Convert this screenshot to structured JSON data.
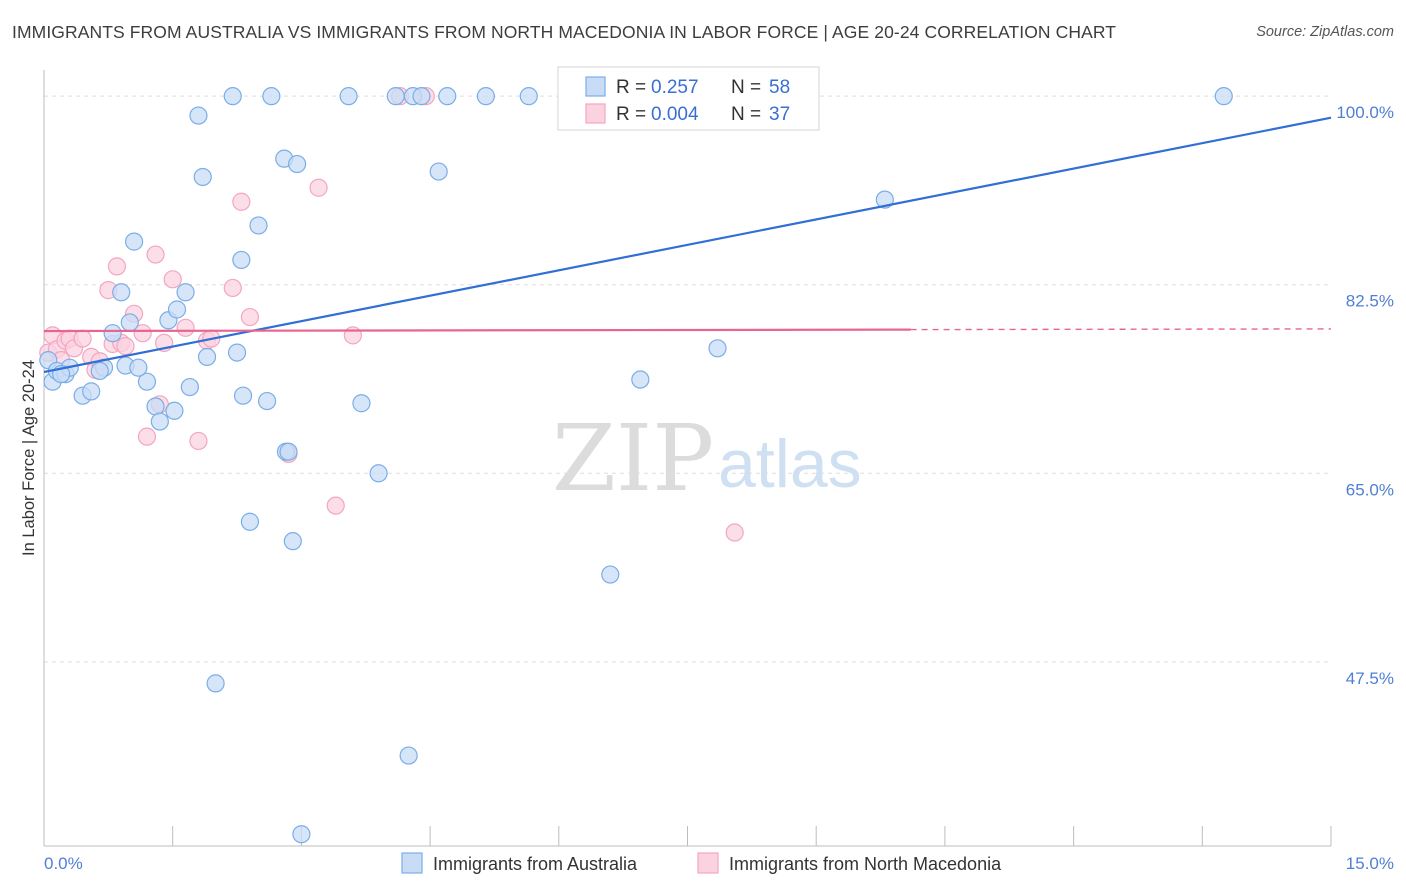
{
  "header": {
    "title": "IMMIGRANTS FROM AUSTRALIA VS IMMIGRANTS FROM NORTH MACEDONIA IN LABOR FORCE | AGE 20-24 CORRELATION CHART",
    "source": "Source: ZipAtlas.com"
  },
  "watermark": {
    "zip": "ZIP",
    "atlas": "atlas"
  },
  "legend": {
    "items": [
      {
        "r_label": "R =",
        "r_value": "0.257",
        "n_label": "N =",
        "n_value": "58"
      },
      {
        "r_label": "R =",
        "r_value": "0.004",
        "n_label": "N =",
        "n_value": "37"
      }
    ]
  },
  "chart_data": {
    "type": "scatter",
    "title": "IMMIGRANTS FROM AUSTRALIA VS IMMIGRANTS FROM NORTH MACEDONIA IN LABOR FORCE | AGE 20-24 CORRELATION CHART",
    "xlabel": "",
    "ylabel": "In Labor Force | Age 20-24",
    "xlim": [
      0,
      15
    ],
    "ylim": [
      30.5,
      101.5
    ],
    "x_tick_labels": [
      "0.0%",
      "15.0%"
    ],
    "y_ticks": [
      47.5,
      65.0,
      82.5,
      100.0
    ],
    "y_tick_labels": [
      "47.5%",
      "65.0%",
      "82.5%",
      "100.0%"
    ],
    "grid": "horizontal dashed",
    "legend_position": "top-center",
    "colors": {
      "australia": "#7aaee8",
      "australia_line": "#2f6fd6",
      "macedonia": "#f3a6c0",
      "macedonia_line": "#e8658f"
    },
    "series": [
      {
        "name": "Immigrants from Australia",
        "r": 0.257,
        "n": 58,
        "trend": {
          "x": [
            0,
            15
          ],
          "y": [
            74.4,
            98.0
          ],
          "dashed_from": null
        },
        "points": [
          [
            0.05,
            75.5
          ],
          [
            0.1,
            73.5
          ],
          [
            0.15,
            74.5
          ],
          [
            0.25,
            74.2
          ],
          [
            0.3,
            74.8
          ],
          [
            0.45,
            72.2
          ],
          [
            0.55,
            72.6
          ],
          [
            0.7,
            74.8
          ],
          [
            0.8,
            78.0
          ],
          [
            0.9,
            81.8
          ],
          [
            0.95,
            75.0
          ],
          [
            1.0,
            79.0
          ],
          [
            1.05,
            86.5
          ],
          [
            1.2,
            73.5
          ],
          [
            1.3,
            71.2
          ],
          [
            1.35,
            69.8
          ],
          [
            1.45,
            79.2
          ],
          [
            1.52,
            70.8
          ],
          [
            1.55,
            80.2
          ],
          [
            1.65,
            81.8
          ],
          [
            1.7,
            73.0
          ],
          [
            1.8,
            98.2
          ],
          [
            1.85,
            92.5
          ],
          [
            1.9,
            75.8
          ],
          [
            2.0,
            45.5
          ],
          [
            2.2,
            100.0
          ],
          [
            2.25,
            76.2
          ],
          [
            2.3,
            84.8
          ],
          [
            2.32,
            72.2
          ],
          [
            2.4,
            60.5
          ],
          [
            2.5,
            88.0
          ],
          [
            2.6,
            71.7
          ],
          [
            2.65,
            100.0
          ],
          [
            2.8,
            94.2
          ],
          [
            2.82,
            67.0
          ],
          [
            2.9,
            58.7
          ],
          [
            2.95,
            93.7
          ],
          [
            3.0,
            31.5
          ],
          [
            3.55,
            100.0
          ],
          [
            3.7,
            71.5
          ],
          [
            3.9,
            65.0
          ],
          [
            4.1,
            100.0
          ],
          [
            4.25,
            38.8
          ],
          [
            4.3,
            100.0
          ],
          [
            4.4,
            100.0
          ],
          [
            4.6,
            93.0
          ],
          [
            4.7,
            100.0
          ],
          [
            5.15,
            100.0
          ],
          [
            5.65,
            100.0
          ],
          [
            6.6,
            55.6
          ],
          [
            6.95,
            73.7
          ],
          [
            7.85,
            76.6
          ],
          [
            9.8,
            90.4
          ],
          [
            13.75,
            100.0
          ],
          [
            0.2,
            74.2
          ],
          [
            0.65,
            74.5
          ],
          [
            1.1,
            74.8
          ],
          [
            2.85,
            67.0
          ]
        ]
      },
      {
        "name": "Immigrants from North Macedonia",
        "r": 0.004,
        "n": 37,
        "trend": {
          "x": [
            0,
            15
          ],
          "y": [
            78.2,
            78.4
          ],
          "dashed_from": 10.1
        },
        "points": [
          [
            0.05,
            76.2
          ],
          [
            0.1,
            77.8
          ],
          [
            0.15,
            76.5
          ],
          [
            0.2,
            75.5
          ],
          [
            0.25,
            77.3
          ],
          [
            0.3,
            77.5
          ],
          [
            0.35,
            76.6
          ],
          [
            0.45,
            77.5
          ],
          [
            0.55,
            75.8
          ],
          [
            0.6,
            74.6
          ],
          [
            0.65,
            75.4
          ],
          [
            0.75,
            82.0
          ],
          [
            0.8,
            77.0
          ],
          [
            0.85,
            84.2
          ],
          [
            0.9,
            77.1
          ],
          [
            0.95,
            76.8
          ],
          [
            1.05,
            79.8
          ],
          [
            1.15,
            78.0
          ],
          [
            1.2,
            68.4
          ],
          [
            1.3,
            85.3
          ],
          [
            1.35,
            71.4
          ],
          [
            1.4,
            77.1
          ],
          [
            1.5,
            83.0
          ],
          [
            1.65,
            78.5
          ],
          [
            1.8,
            68.0
          ],
          [
            1.9,
            77.3
          ],
          [
            1.95,
            77.5
          ],
          [
            2.2,
            82.2
          ],
          [
            2.3,
            90.2
          ],
          [
            2.4,
            79.5
          ],
          [
            2.85,
            66.8
          ],
          [
            3.2,
            91.5
          ],
          [
            3.4,
            62.0
          ],
          [
            3.6,
            77.8
          ],
          [
            4.15,
            100.0
          ],
          [
            4.45,
            100.0
          ],
          [
            8.05,
            59.5
          ]
        ]
      }
    ]
  },
  "bottom_legend": {
    "items": [
      "Immigrants from Australia",
      "Immigrants from North Macedonia"
    ]
  }
}
